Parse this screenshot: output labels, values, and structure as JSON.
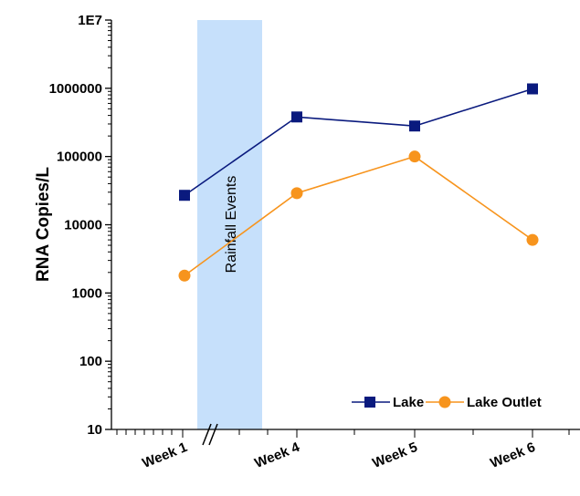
{
  "chart_data": {
    "type": "line",
    "title": "",
    "xlabel": "",
    "ylabel": "RNA Copies/L",
    "y_scale": "log",
    "ylim": [
      10,
      10000000
    ],
    "y_tick_labels": [
      "10",
      "100",
      "1000",
      "10000",
      "100000",
      "1000000",
      "1E7"
    ],
    "categories": [
      "Week 1",
      "Week 4",
      "Week 5",
      "Week 6"
    ],
    "series": [
      {
        "name": "Lake",
        "values": [
          27000,
          380000,
          280000,
          980000
        ],
        "color": "#0a1a7e",
        "marker": "square"
      },
      {
        "name": "Lake Outlet",
        "values": [
          1800,
          29000,
          100000,
          6000
        ],
        "color": "#f7941d",
        "marker": "circle"
      }
    ],
    "annotation": {
      "text": "Rainfall Events",
      "color": "#c6e0fb"
    },
    "axis_break": true,
    "legend_position": "bottom-right",
    "grid": false
  }
}
